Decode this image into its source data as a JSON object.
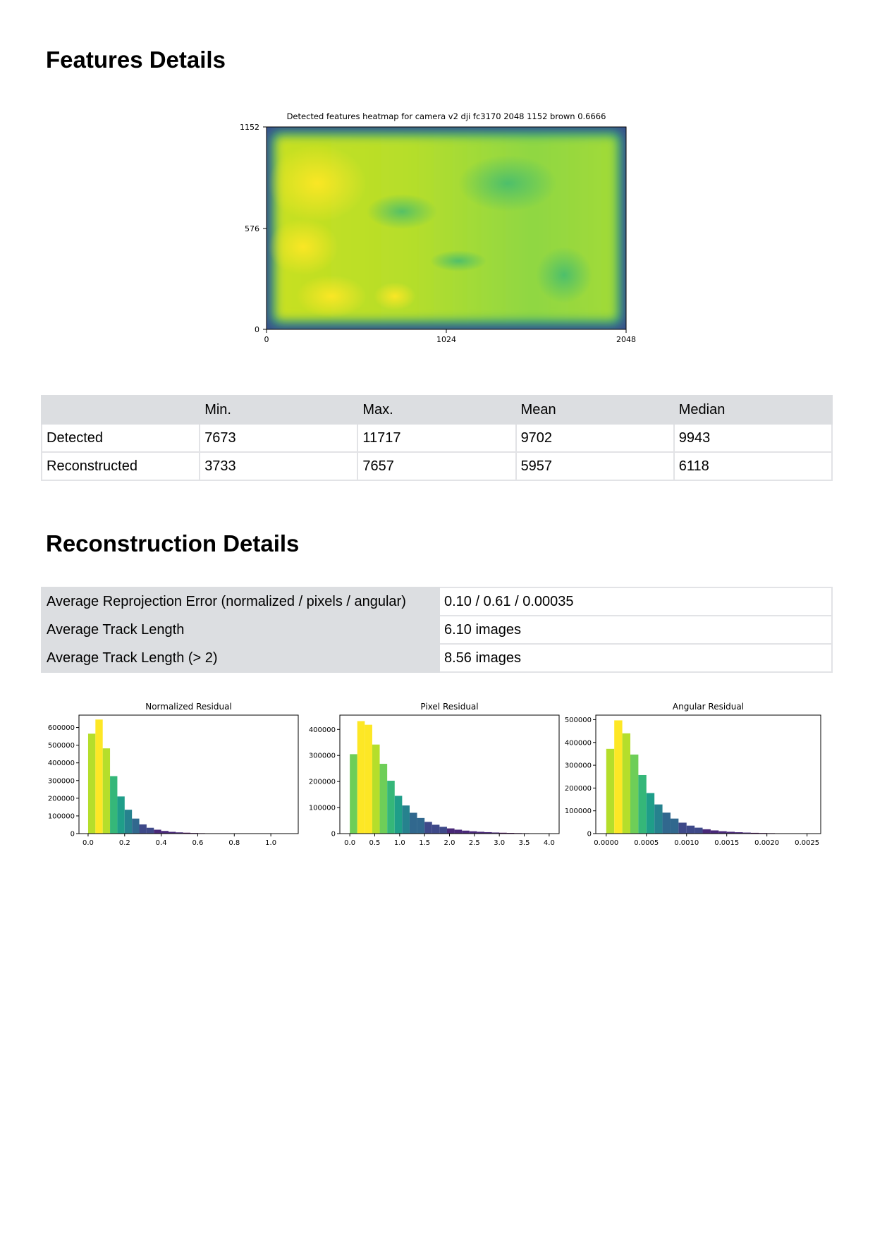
{
  "features_section": {
    "title": "Features Details"
  },
  "heatmap": {
    "title": "Detected features heatmap for camera v2 dji fc3170 2048 1152 brown 0.6666",
    "x_ticks": [
      "0",
      "1024",
      "2048"
    ],
    "y_ticks": [
      "1152",
      "576",
      "0"
    ]
  },
  "features_table": {
    "headers": [
      "",
      "Min.",
      "Max.",
      "Mean",
      "Median"
    ],
    "rows": [
      [
        "Detected",
        "7673",
        "11717",
        "9702",
        "9943"
      ],
      [
        "Reconstructed",
        "3733",
        "7657",
        "5957",
        "6118"
      ]
    ]
  },
  "reconstruction_section": {
    "title": "Reconstruction Details"
  },
  "reconstruction_table": {
    "rows": [
      [
        "Average Reprojection Error (normalized / pixels / angular)",
        "0.10 / 0.61 / 0.00035"
      ],
      [
        "Average Track Length",
        "6.10 images"
      ],
      [
        "Average Track Length (> 2)",
        "8.56 images"
      ]
    ]
  },
  "chart_data": [
    {
      "type": "heatmap",
      "title": "Detected features heatmap for camera v2 dji fc3170 2048 1152 brown 0.6666",
      "xlim": [
        0,
        2048
      ],
      "ylim": [
        0,
        1152
      ],
      "x_ticks": [
        0,
        1024,
        2048
      ],
      "y_ticks": [
        0,
        576,
        1152
      ],
      "colormap": "viridis"
    },
    {
      "type": "bar",
      "title": "Normalized Residual",
      "bin_width": 0.04,
      "x_start": 0.0,
      "values": [
        565000,
        645000,
        482000,
        325000,
        210000,
        135000,
        85000,
        52000,
        33000,
        22000,
        15000,
        10000,
        7000,
        5000,
        3500,
        2500,
        1800,
        1300,
        1000,
        800,
        600,
        450,
        350,
        280,
        220,
        180,
        150
      ],
      "xlim": [
        -0.05,
        1.15
      ],
      "ylim": [
        0,
        670000
      ],
      "x_ticks": [
        0.0,
        0.2,
        0.4,
        0.6,
        0.8,
        1.0
      ],
      "y_ticks": [
        0,
        100000,
        200000,
        300000,
        400000,
        500000,
        600000
      ],
      "x_tick_labels": [
        "0.0",
        "0.2",
        "0.4",
        "0.6",
        "0.8",
        "1.0"
      ],
      "y_tick_labels": [
        "0",
        "100000",
        "200000",
        "300000",
        "400000",
        "500000",
        "600000"
      ]
    },
    {
      "type": "bar",
      "title": "Pixel Residual",
      "bin_width": 0.15,
      "x_start": 0.0,
      "values": [
        305000,
        432000,
        418000,
        342000,
        268000,
        203000,
        145000,
        108000,
        80000,
        60000,
        45000,
        34000,
        26000,
        20000,
        15000,
        11500,
        9000,
        7000,
        5500,
        4200,
        3300,
        2600,
        2000,
        1600,
        1300,
        1000,
        800
      ],
      "xlim": [
        -0.2,
        4.2
      ],
      "ylim": [
        0,
        455000
      ],
      "x_ticks": [
        0.0,
        0.5,
        1.0,
        1.5,
        2.0,
        2.5,
        3.0,
        3.5,
        4.0
      ],
      "y_ticks": [
        0,
        100000,
        200000,
        300000,
        400000
      ],
      "x_tick_labels": [
        "0.0",
        "0.5",
        "1.0",
        "1.5",
        "2.0",
        "2.5",
        "3.0",
        "3.5",
        "4.0"
      ],
      "y_tick_labels": [
        "0",
        "100000",
        "200000",
        "300000",
        "400000"
      ]
    },
    {
      "type": "bar",
      "title": "Angular Residual",
      "bin_width": 0.0001,
      "x_start": 0.0,
      "values": [
        372000,
        497000,
        440000,
        347000,
        257000,
        178000,
        128000,
        92000,
        66000,
        48000,
        35000,
        26000,
        19000,
        14000,
        10500,
        8000,
        6000,
        4500,
        3400,
        2600,
        2000,
        1500,
        1150,
        900,
        700
      ],
      "xlim": [
        -0.00013,
        0.00267
      ],
      "ylim": [
        0,
        520000
      ],
      "x_ticks": [
        0.0,
        0.0005,
        0.001,
        0.0015,
        0.002,
        0.0025
      ],
      "y_ticks": [
        0,
        100000,
        200000,
        300000,
        400000,
        500000
      ],
      "x_tick_labels": [
        "0.0000",
        "0.0005",
        "0.0010",
        "0.0015",
        "0.0020",
        "0.0025"
      ],
      "y_tick_labels": [
        "0",
        "100000",
        "200000",
        "300000",
        "400000",
        "500000"
      ]
    }
  ]
}
